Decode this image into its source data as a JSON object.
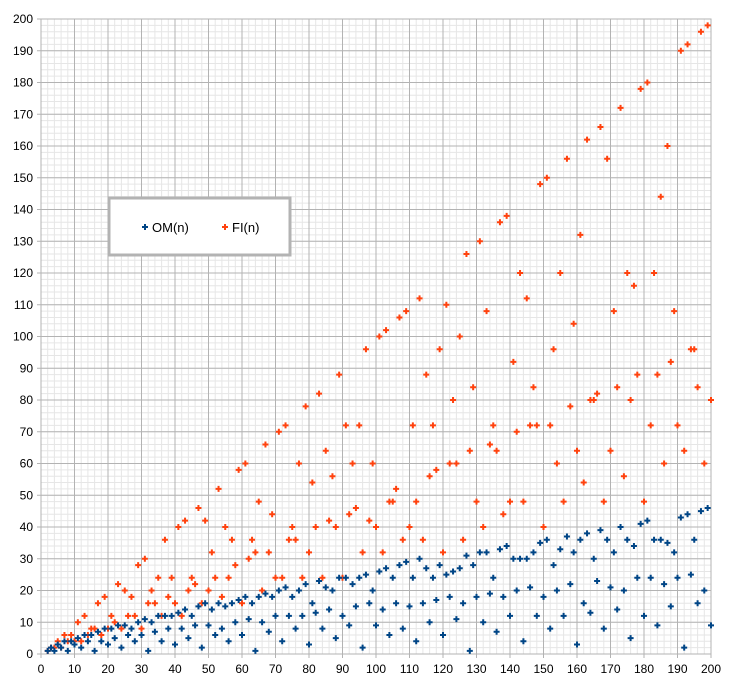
{
  "chart_data": {
    "type": "scatter",
    "title": "",
    "xlabel": "",
    "ylabel": "",
    "xlim": [
      0,
      200
    ],
    "ylim": [
      0,
      200
    ],
    "xticks": [
      0,
      10,
      20,
      30,
      40,
      50,
      60,
      70,
      80,
      90,
      100,
      110,
      120,
      130,
      140,
      150,
      160,
      170,
      180,
      190,
      200
    ],
    "yticks": [
      0,
      10,
      20,
      30,
      40,
      50,
      60,
      70,
      80,
      90,
      100,
      110,
      120,
      130,
      140,
      150,
      160,
      170,
      180,
      190,
      200
    ],
    "major_grid_step": 10,
    "minor_grid_step": 2,
    "grid": true,
    "legend_placement": "top-left",
    "marker": "plus",
    "x": [
      2,
      3,
      4,
      5,
      6,
      7,
      8,
      9,
      10,
      11,
      12,
      13,
      14,
      15,
      16,
      17,
      18,
      19,
      20,
      21,
      22,
      23,
      24,
      25,
      26,
      27,
      28,
      29,
      30,
      31,
      32,
      33,
      34,
      35,
      36,
      37,
      38,
      39,
      40,
      41,
      42,
      43,
      44,
      45,
      46,
      47,
      48,
      49,
      50,
      51,
      52,
      53,
      54,
      55,
      56,
      57,
      58,
      59,
      60,
      61,
      62,
      63,
      64,
      65,
      66,
      67,
      68,
      69,
      70,
      71,
      72,
      73,
      74,
      75,
      76,
      77,
      78,
      79,
      80,
      81,
      82,
      83,
      84,
      85,
      86,
      87,
      88,
      89,
      90,
      91,
      92,
      93,
      94,
      95,
      96,
      97,
      98,
      99,
      100,
      101,
      102,
      103,
      104,
      105,
      106,
      107,
      108,
      109,
      110,
      111,
      112,
      113,
      114,
      115,
      116,
      117,
      118,
      119,
      120,
      121,
      122,
      123,
      124,
      125,
      126,
      127,
      128,
      129,
      130,
      131,
      132,
      133,
      134,
      135,
      136,
      137,
      138,
      139,
      140,
      141,
      142,
      143,
      144,
      145,
      146,
      147,
      148,
      149,
      150,
      151,
      152,
      153,
      154,
      155,
      156,
      157,
      158,
      159,
      160,
      161,
      162,
      163,
      164,
      165,
      166,
      167,
      168,
      169,
      170,
      171,
      172,
      173,
      174,
      175,
      176,
      177,
      178,
      179,
      180,
      181,
      182,
      183,
      184,
      185,
      186,
      187,
      188,
      189,
      190,
      191,
      192,
      193,
      194,
      195,
      196,
      197,
      198,
      199,
      200
    ],
    "series": [
      {
        "name": "OM(n)",
        "color": "#004586",
        "values": [
          1,
          2,
          1,
          3,
          2,
          4,
          1,
          4,
          3,
          5,
          2,
          6,
          4,
          6,
          1,
          7,
          4,
          8,
          3,
          8,
          5,
          9,
          2,
          9,
          6,
          8,
          4,
          10,
          6,
          11,
          1,
          10,
          7,
          12,
          4,
          12,
          8,
          12,
          3,
          13,
          8,
          14,
          5,
          12,
          9,
          15,
          2,
          16,
          9,
          14,
          6,
          16,
          8,
          15,
          4,
          16,
          10,
          17,
          6,
          18,
          11,
          16,
          1,
          18,
          10,
          19,
          7,
          18,
          12,
          20,
          4,
          21,
          12,
          18,
          8,
          20,
          12,
          22,
          3,
          16,
          13,
          23,
          8,
          21,
          14,
          20,
          5,
          24,
          12,
          24,
          9,
          22,
          15,
          24,
          2,
          25,
          16,
          20,
          9,
          26,
          14,
          27,
          6,
          24,
          16,
          28,
          8,
          29,
          15,
          24,
          4,
          30,
          16,
          27,
          10,
          24,
          17,
          28,
          6,
          25,
          18,
          26,
          11,
          27,
          16,
          31,
          1,
          28,
          18,
          32,
          10,
          32,
          19,
          24,
          7,
          33,
          18,
          34,
          12,
          30,
          20,
          30,
          4,
          30,
          21,
          32,
          12,
          35,
          18,
          36,
          8,
          28,
          20,
          33,
          12,
          37,
          22,
          32,
          3,
          36,
          16,
          38,
          13,
          30,
          23,
          39,
          8,
          36,
          21,
          32,
          14,
          40,
          20,
          36,
          5,
          34,
          24,
          41,
          12,
          42,
          24,
          36,
          9,
          36,
          22,
          35,
          15,
          32,
          24,
          43,
          2,
          44,
          25,
          36,
          16,
          45,
          20,
          46,
          9
        ]
      },
      {
        "name": "FI(n)",
        "color": "#ff420e",
        "values": [
          1,
          2,
          2,
          4,
          2,
          6,
          4,
          6,
          4,
          10,
          4,
          12,
          6,
          8,
          8,
          16,
          6,
          18,
          8,
          12,
          10,
          22,
          8,
          20,
          12,
          18,
          12,
          28,
          8,
          30,
          16,
          20,
          16,
          24,
          12,
          36,
          18,
          24,
          16,
          40,
          12,
          42,
          20,
          24,
          22,
          46,
          16,
          42,
          20,
          32,
          24,
          52,
          18,
          40,
          24,
          36,
          28,
          58,
          16,
          60,
          30,
          36,
          32,
          48,
          20,
          66,
          32,
          44,
          24,
          70,
          24,
          72,
          36,
          40,
          36,
          60,
          24,
          78,
          32,
          54,
          40,
          82,
          24,
          64,
          42,
          56,
          40,
          88,
          24,
          72,
          44,
          60,
          46,
          72,
          32,
          96,
          42,
          60,
          40,
          100,
          32,
          102,
          48,
          48,
          52,
          106,
          36,
          108,
          40,
          72,
          48,
          112,
          36,
          88,
          56,
          72,
          58,
          96,
          32,
          110,
          60,
          80,
          60,
          100,
          36,
          126,
          64,
          84,
          48,
          130,
          40,
          108,
          66,
          72,
          64,
          136,
          44,
          138,
          48,
          92,
          70,
          120,
          48,
          112,
          72,
          84,
          72,
          148,
          40,
          150,
          72,
          96,
          60,
          120,
          48,
          156,
          78,
          104,
          64,
          132,
          54,
          162,
          80,
          80,
          82,
          166,
          48,
          156,
          64,
          108,
          84,
          172,
          56,
          120,
          80,
          116,
          88,
          178,
          48,
          180,
          72,
          120,
          88,
          144,
          60,
          160,
          92,
          108,
          72,
          190,
          64,
          192,
          96,
          96,
          84,
          196,
          60,
          198,
          80
        ]
      }
    ]
  }
}
